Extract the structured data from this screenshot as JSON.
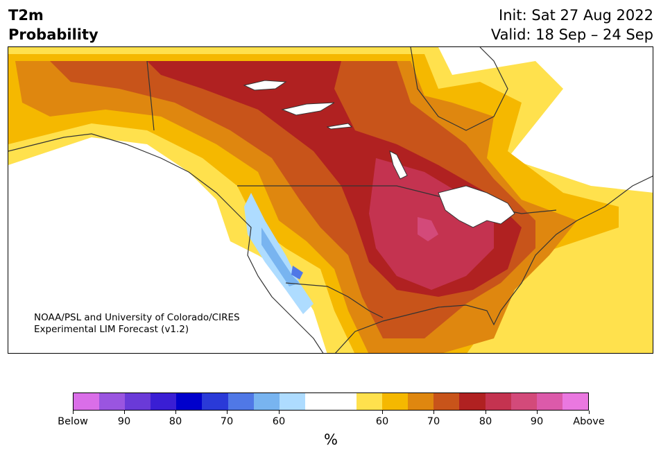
{
  "header": {
    "title_line1": "T2m",
    "title_line2": "Probability",
    "init_text": "Init: Sat 27 Aug 2022",
    "valid_text": "Valid: 18 Sep – 24 Sep"
  },
  "map": {
    "credit_line1": "NOAA/PSL and University of Colorado/CIRES",
    "credit_line2": "Experimental LIM Forecast (v1.2)",
    "region": "North America",
    "color_above": [
      "#ffe14d",
      "#f5b800",
      "#df870f",
      "#c8541a",
      "#b02121",
      "#c43350",
      "#d34a7a"
    ],
    "color_below": [
      "#aedcff",
      "#78b4f0",
      "#5078e6"
    ]
  },
  "colorbar": {
    "unit_label": "%",
    "colors": [
      "#da6ee8",
      "#9a55e0",
      "#6a3ad8",
      "#3a1ed4",
      "#0000cc",
      "#2a3ad8",
      "#5078e6",
      "#78b4f0",
      "#aedcff",
      "#ffffff",
      "#ffffff",
      "#ffe14d",
      "#f5b800",
      "#df870f",
      "#c8541a",
      "#b02121",
      "#c43350",
      "#d34a7a",
      "#dc5aaa",
      "#ea78e0"
    ],
    "labels": [
      "Below",
      "90",
      "80",
      "70",
      "60",
      "60",
      "70",
      "80",
      "90",
      "Above"
    ]
  }
}
